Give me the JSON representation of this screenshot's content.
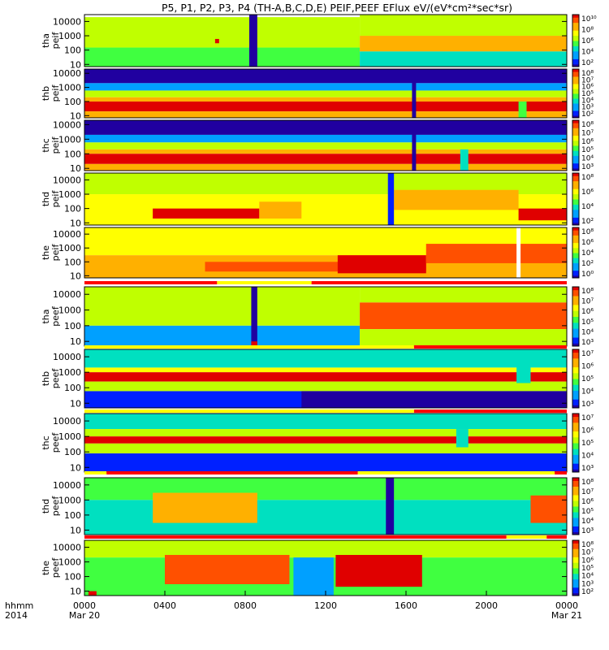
{
  "title": "P5, P1, P2, P3, P4 (TH-A,B,C,D,E) PEIF,PEEF EFlux eV/(eV*cm²*sec*sr)",
  "colors": {
    "spectrum": [
      "#2000a0",
      "#0020ff",
      "#00a0ff",
      "#00e0c0",
      "#40ff40",
      "#c0ff00",
      "#ffff00",
      "#ffb000",
      "#ff5000",
      "#e00000"
    ],
    "flag_yellow": "#ffff00",
    "flag_red": "#ff0000",
    "density_line": "#000000"
  },
  "xaxis": {
    "row_label": [
      "hhmm",
      "2014"
    ],
    "ticks": [
      {
        "hour": 0,
        "label": "0000",
        "date": "Mar 20"
      },
      {
        "hour": 4,
        "label": "0400",
        "date": ""
      },
      {
        "hour": 8,
        "label": "0800",
        "date": ""
      },
      {
        "hour": 12,
        "label": "1200",
        "date": ""
      },
      {
        "hour": 16,
        "label": "1600",
        "date": ""
      },
      {
        "hour": 20,
        "label": "2000",
        "date": ""
      },
      {
        "hour": 24,
        "label": "0000",
        "date": "Mar 21"
      }
    ],
    "range_hours": [
      0,
      24
    ]
  },
  "chart_data": {
    "type": "heatmap",
    "title": "P5, P1, P2, P3, P4 (TH-A,B,C,D,E) PEIF,PEEF EFlux eV/(eV*cm²*sec*sr)",
    "x_range_hours": [
      0,
      24
    ],
    "energy_ticks": [
      "10",
      "100",
      "1000",
      "10000"
    ],
    "panels": [
      {
        "label": [
          "tha",
          "peif"
        ],
        "ylim_eV": [
          7,
          30000
        ],
        "cbar": [
          "10¹⁰",
          "10⁸",
          "10⁶",
          "10⁴",
          "10²"
        ],
        "cbar_exp": [
          2,
          10
        ]
      },
      {
        "label": [
          "thb",
          "peif"
        ],
        "ylim_eV": [
          7,
          20000
        ],
        "cbar": [
          "10⁸",
          "10⁷",
          "10⁶",
          "10⁵",
          "10⁴",
          "10³",
          "10²"
        ],
        "cbar_exp": [
          2,
          8
        ]
      },
      {
        "label": [
          "thc",
          "peif"
        ],
        "ylim_eV": [
          7,
          20000
        ],
        "cbar": [
          "10⁸",
          "10⁷",
          "10⁶",
          "10⁵",
          "10⁴",
          "10³"
        ],
        "cbar_exp": [
          3,
          8
        ]
      },
      {
        "label": [
          "thd",
          "peif"
        ],
        "ylim_eV": [
          7,
          30000
        ],
        "cbar": [
          "10⁸",
          "10⁶",
          "10⁴",
          "10²"
        ],
        "cbar_exp": [
          1,
          8
        ]
      },
      {
        "label": [
          "the",
          "peif"
        ],
        "ylim_eV": [
          7,
          30000
        ],
        "cbar": [
          "10⁸",
          "10⁶",
          "10⁴",
          "10²",
          "10⁰"
        ],
        "cbar_exp": [
          0,
          8
        ]
      },
      {
        "label": [
          "tha",
          "peef"
        ],
        "ylim_eV": [
          5,
          30000
        ],
        "cbar": [
          "10⁸",
          "10⁷",
          "10⁶",
          "10⁵",
          "10⁴",
          "10³"
        ],
        "cbar_exp": [
          3,
          8
        ]
      },
      {
        "label": [
          "thb",
          "peef"
        ],
        "ylim_eV": [
          5,
          30000
        ],
        "cbar": [
          "10⁷",
          "10⁶",
          "10⁵",
          "10⁴",
          "10³"
        ],
        "cbar_exp": [
          3,
          7
        ]
      },
      {
        "label": [
          "thc",
          "peef"
        ],
        "ylim_eV": [
          5,
          30000
        ],
        "cbar": [
          "10⁷",
          "10⁶",
          "10⁵",
          "10⁴",
          "10³"
        ],
        "cbar_exp": [
          3,
          7
        ]
      },
      {
        "label": [
          "thd",
          "peef"
        ],
        "ylim_eV": [
          5,
          30000
        ],
        "cbar": [
          "10⁸",
          "10⁷",
          "10⁶",
          "10⁵",
          "10⁴",
          "10³"
        ],
        "cbar_exp": [
          3,
          8
        ]
      },
      {
        "label": [
          "the",
          "peef"
        ],
        "ylim_eV": [
          5,
          30000
        ],
        "cbar": [
          "10⁸",
          "10⁷",
          "10⁶",
          "10⁵",
          "10⁴",
          "10³",
          "10²"
        ],
        "cbar_exp": [
          2,
          8
        ]
      }
    ],
    "region_bars": [
      [
        {
          "from_h": 0,
          "to_h": 6.6,
          "color": "red"
        },
        {
          "from_h": 6.6,
          "to_h": 11.3,
          "color": "yellow"
        },
        {
          "from_h": 11.3,
          "to_h": 24,
          "color": "red"
        }
      ],
      [
        {
          "from_h": 0,
          "to_h": 16.4,
          "color": "yellow"
        },
        {
          "from_h": 16.4,
          "to_h": 24,
          "color": "red"
        }
      ],
      [
        {
          "from_h": 0,
          "to_h": 16.4,
          "color": "yellow"
        },
        {
          "from_h": 16.4,
          "to_h": 24,
          "color": "red"
        }
      ],
      [
        {
          "from_h": 0,
          "to_h": 1.1,
          "color": "yellow"
        },
        {
          "from_h": 1.1,
          "to_h": 13.6,
          "color": "red"
        },
        {
          "from_h": 13.6,
          "to_h": 23.4,
          "color": "yellow"
        },
        {
          "from_h": 23.4,
          "to_h": 24,
          "color": "red"
        }
      ],
      [
        {
          "from_h": 0,
          "to_h": 21.0,
          "color": "red"
        },
        {
          "from_h": 21.0,
          "to_h": 23.0,
          "color": "yellow"
        },
        {
          "from_h": 23.0,
          "to_h": 24,
          "color": "red"
        }
      ]
    ],
    "features": [
      [
        {
          "from_h": 0,
          "to_h": 13.7,
          "e_lo": 150,
          "e_hi": 20000,
          "level": 6.2
        },
        {
          "from_h": 0,
          "to_h": 13.7,
          "e_lo": 7,
          "e_hi": 150,
          "level": 5.3
        },
        {
          "from_h": 13.7,
          "to_h": 24,
          "e_lo": 80,
          "e_hi": 1000,
          "level": 8.0
        },
        {
          "from_h": 13.7,
          "to_h": 24,
          "e_lo": 1000,
          "e_hi": 30000,
          "level": 6.0
        },
        {
          "from_h": 13.7,
          "to_h": 24,
          "e_lo": 7,
          "e_hi": 80,
          "level": 5.0
        },
        {
          "from_h": 8.2,
          "to_h": 8.6,
          "e_lo": 7,
          "e_hi": 30000,
          "level": 2.2
        },
        {
          "from_h": 6.5,
          "to_h": 6.7,
          "e_lo": 300,
          "e_hi": 600,
          "level": 9.8
        }
      ],
      [
        {
          "from_h": 0,
          "to_h": 24,
          "e_lo": 2000,
          "e_hi": 20000,
          "level": 2.3
        },
        {
          "from_h": 0,
          "to_h": 24,
          "e_lo": 600,
          "e_hi": 2000,
          "level": 3.6
        },
        {
          "from_h": 0,
          "to_h": 24,
          "e_lo": 200,
          "e_hi": 600,
          "level": 5.2
        },
        {
          "from_h": 0,
          "to_h": 24,
          "e_lo": 100,
          "e_hi": 200,
          "level": 6.4
        },
        {
          "from_h": 0,
          "to_h": 24,
          "e_lo": 20,
          "e_hi": 100,
          "level": 7.7
        },
        {
          "from_h": 0,
          "to_h": 24,
          "e_lo": 7,
          "e_hi": 20,
          "level": 6.8
        },
        {
          "from_h": 16.3,
          "to_h": 16.5,
          "e_lo": 7,
          "e_hi": 20000,
          "level": 2.0
        },
        {
          "from_h": 21.6,
          "to_h": 22.0,
          "e_lo": 7,
          "e_hi": 100,
          "level": 4.5
        }
      ],
      [
        {
          "from_h": 0,
          "to_h": 24,
          "e_lo": 2000,
          "e_hi": 20000,
          "level": 3.2
        },
        {
          "from_h": 0,
          "to_h": 24,
          "e_lo": 600,
          "e_hi": 2000,
          "level": 4.3
        },
        {
          "from_h": 0,
          "to_h": 24,
          "e_lo": 200,
          "e_hi": 600,
          "level": 5.8
        },
        {
          "from_h": 0,
          "to_h": 24,
          "e_lo": 100,
          "e_hi": 200,
          "level": 6.8
        },
        {
          "from_h": 0,
          "to_h": 24,
          "e_lo": 20,
          "e_hi": 100,
          "level": 7.8
        },
        {
          "from_h": 0,
          "to_h": 24,
          "e_lo": 7,
          "e_hi": 20,
          "level": 7.0
        },
        {
          "from_h": 16.3,
          "to_h": 16.5,
          "e_lo": 7,
          "e_hi": 20000,
          "level": 3.1
        },
        {
          "from_h": 18.7,
          "to_h": 19.1,
          "e_lo": 7,
          "e_hi": 200,
          "level": 4.5
        }
      ],
      [
        {
          "from_h": 0,
          "to_h": 24,
          "e_lo": 1000,
          "e_hi": 30000,
          "level": 5.2
        },
        {
          "from_h": 0,
          "to_h": 24,
          "e_lo": 7,
          "e_hi": 1000,
          "level": 6.0
        },
        {
          "from_h": 3.4,
          "to_h": 8.7,
          "e_lo": 20,
          "e_hi": 100,
          "level": 7.8
        },
        {
          "from_h": 8.7,
          "to_h": 10.8,
          "e_lo": 20,
          "e_hi": 300,
          "level": 6.6
        },
        {
          "from_h": 15.4,
          "to_h": 21.6,
          "e_lo": 80,
          "e_hi": 2000,
          "level": 6.8
        },
        {
          "from_h": 21.6,
          "to_h": 24,
          "e_lo": 15,
          "e_hi": 100,
          "level": 7.8
        },
        {
          "from_h": 15.1,
          "to_h": 15.4,
          "e_lo": 7,
          "e_hi": 30000,
          "level": 2.0
        }
      ],
      [
        {
          "from_h": 0,
          "to_h": 24,
          "e_lo": 300,
          "e_hi": 30000,
          "level": 5.6
        },
        {
          "from_h": 0,
          "to_h": 24,
          "e_lo": 7,
          "e_hi": 300,
          "level": 6.2
        },
        {
          "from_h": 6.0,
          "to_h": 17.0,
          "e_lo": 20,
          "e_hi": 100,
          "level": 7.5
        },
        {
          "from_h": 12.6,
          "to_h": 17.0,
          "e_lo": 15,
          "e_hi": 300,
          "level": 8.0
        },
        {
          "from_h": 17.0,
          "to_h": 24,
          "e_lo": 80,
          "e_hi": 2000,
          "level": 6.8
        },
        {
          "from_h": 21.5,
          "to_h": 21.7,
          "e_lo": 7,
          "e_hi": 30000,
          "level": -2
        }
      ],
      [
        {
          "from_h": 0,
          "to_h": 13.7,
          "e_lo": 100,
          "e_hi": 30000,
          "level": 5.8
        },
        {
          "from_h": 0,
          "to_h": 13.7,
          "e_lo": 5,
          "e_hi": 100,
          "level": 4.3
        },
        {
          "from_h": 13.7,
          "to_h": 24,
          "e_lo": 3000,
          "e_hi": 30000,
          "level": 5.6
        },
        {
          "from_h": 13.7,
          "to_h": 24,
          "e_lo": 60,
          "e_hi": 3000,
          "level": 7.7
        },
        {
          "from_h": 13.7,
          "to_h": 24,
          "e_lo": 5,
          "e_hi": 60,
          "level": 5.6
        },
        {
          "from_h": 8.3,
          "to_h": 8.6,
          "e_lo": 5,
          "e_hi": 30000,
          "level": 3.0
        },
        {
          "from_h": 8.3,
          "to_h": 8.6,
          "e_lo": 5,
          "e_hi": 10,
          "level": 8.0
        }
      ],
      [
        {
          "from_h": 0,
          "to_h": 24,
          "e_lo": 2000,
          "e_hi": 30000,
          "level": 4.2
        },
        {
          "from_h": 0,
          "to_h": 24,
          "e_lo": 1000,
          "e_hi": 2000,
          "level": 5.5
        },
        {
          "from_h": 0,
          "to_h": 24,
          "e_lo": 250,
          "e_hi": 1000,
          "level": 6.9
        },
        {
          "from_h": 0,
          "to_h": 24,
          "e_lo": 60,
          "e_hi": 250,
          "level": 5.3
        },
        {
          "from_h": 0,
          "to_h": 24,
          "e_lo": 5,
          "e_hi": 60,
          "level": 3.4
        },
        {
          "from_h": 10.8,
          "to_h": 24,
          "e_lo": 5,
          "e_hi": 60,
          "level": 3.1
        },
        {
          "from_h": 21.5,
          "to_h": 22.2,
          "e_lo": 200,
          "e_hi": 3000,
          "level": 4.5
        }
      ],
      [
        {
          "from_h": 0,
          "to_h": 24,
          "e_lo": 3000,
          "e_hi": 30000,
          "level": 4.2
        },
        {
          "from_h": 0,
          "to_h": 24,
          "e_lo": 1000,
          "e_hi": 3000,
          "level": 5.0
        },
        {
          "from_h": 0,
          "to_h": 24,
          "e_lo": 350,
          "e_hi": 1000,
          "level": 6.9
        },
        {
          "from_h": 0,
          "to_h": 24,
          "e_lo": 80,
          "e_hi": 350,
          "level": 5.0
        },
        {
          "from_h": 0,
          "to_h": 24,
          "e_lo": 5,
          "e_hi": 80,
          "level": 3.3
        },
        {
          "from_h": 18.5,
          "to_h": 19.1,
          "e_lo": 200,
          "e_hi": 3000,
          "level": 4.5
        }
      ],
      [
        {
          "from_h": 0,
          "to_h": 24,
          "e_lo": 1000,
          "e_hi": 30000,
          "level": 5.4
        },
        {
          "from_h": 0,
          "to_h": 24,
          "e_lo": 5,
          "e_hi": 1000,
          "level": 4.4
        },
        {
          "from_h": 3.4,
          "to_h": 8.6,
          "e_lo": 30,
          "e_hi": 3000,
          "level": 6.7
        },
        {
          "from_h": 22.2,
          "to_h": 24,
          "e_lo": 30,
          "e_hi": 2000,
          "level": 7.6
        },
        {
          "from_h": 15.0,
          "to_h": 15.4,
          "e_lo": 5,
          "e_hi": 30000,
          "level": 3.1
        }
      ],
      [
        {
          "from_h": 0,
          "to_h": 24,
          "e_lo": 2000,
          "e_hi": 30000,
          "level": 5.4
        },
        {
          "from_h": 0,
          "to_h": 24,
          "e_lo": 5,
          "e_hi": 2000,
          "level": 4.6
        },
        {
          "from_h": 4.0,
          "to_h": 10.2,
          "e_lo": 30,
          "e_hi": 3000,
          "level": 7.1
        },
        {
          "from_h": 12.5,
          "to_h": 16.8,
          "e_lo": 20,
          "e_hi": 3000,
          "level": 7.9
        },
        {
          "from_h": 10.4,
          "to_h": 12.4,
          "e_lo": 5,
          "e_hi": 2000,
          "level": 3.3
        },
        {
          "from_h": 0.2,
          "to_h": 0.6,
          "e_lo": 5,
          "e_hi": 10,
          "level": 8.0
        }
      ]
    ]
  }
}
